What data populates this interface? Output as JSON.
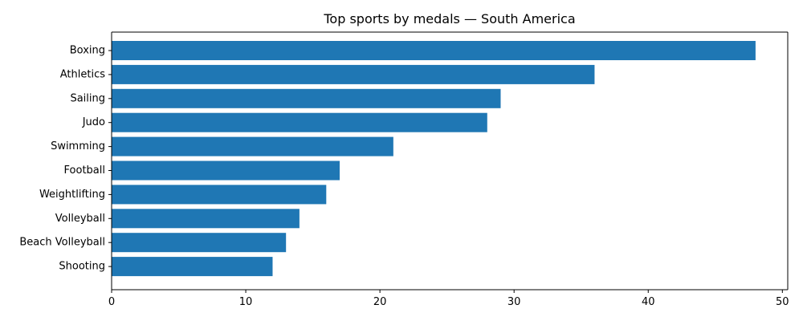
{
  "chart_data": {
    "type": "bar",
    "orientation": "horizontal",
    "title": "Top sports by medals — South America",
    "xlabel": "",
    "ylabel": "",
    "categories": [
      "Boxing",
      "Athletics",
      "Sailing",
      "Judo",
      "Swimming",
      "Football",
      "Weightlifting",
      "Volleyball",
      "Beach Volleyball",
      "Shooting"
    ],
    "values": [
      48,
      36,
      29,
      28,
      21,
      17,
      16,
      14,
      13,
      12
    ],
    "xlim": [
      0,
      50.4
    ],
    "xticks": [
      0,
      10,
      20,
      30,
      40,
      50
    ],
    "grid": false,
    "bar_color": "#1f77b4"
  }
}
